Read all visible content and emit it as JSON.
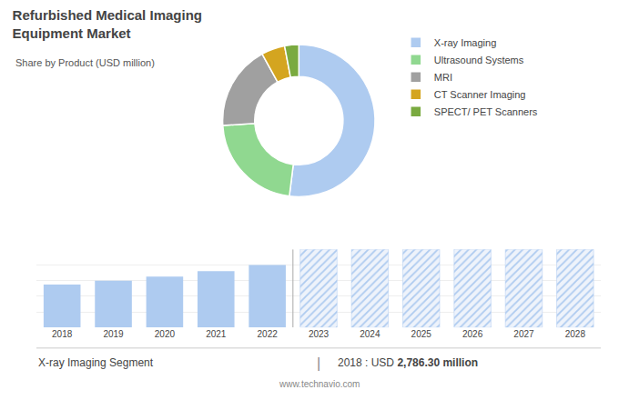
{
  "chart_data": [
    {
      "type": "pie",
      "title": [
        "Refurbished Medical Imaging",
        "Equipment Market"
      ],
      "subtitle": "Share by Product (USD million)",
      "categories": [
        "X-ray Imaging",
        "Ultrasound Systems",
        "MRI",
        "CT Scanner Imaging",
        "SPECT/ PET Scanners"
      ],
      "values": [
        52,
        22,
        18,
        5,
        3
      ],
      "colors": [
        "#aecbf0",
        "#90d890",
        "#a0a0a0",
        "#d4a520",
        "#7aaa40"
      ],
      "legend": "right"
    },
    {
      "type": "bar",
      "categories": [
        "2018",
        "2019",
        "2020",
        "2021",
        "2022",
        "2023",
        "2024",
        "2025",
        "2026",
        "2027",
        "2028"
      ],
      "series": [
        {
          "color": "#aecbf0",
          "values": [
            55,
            60,
            65,
            72,
            80,
            null,
            null,
            null,
            null,
            null,
            null
          ]
        },
        {
          "color": "#eef3fb",
          "marker": "hatched",
          "values": [
            null,
            null,
            null,
            null,
            null,
            100,
            100,
            100,
            100,
            100,
            100
          ]
        }
      ],
      "ylim": [
        0,
        100
      ],
      "yticks": [
        0,
        20,
        40,
        60,
        80,
        100
      ],
      "grid": true,
      "tick_labels": "x",
      "annotations": [
        "X-ray Imaging Segment",
        "|",
        "2018 : USD",
        "2,786.30 million",
        "www.technavio.com"
      ]
    }
  ]
}
